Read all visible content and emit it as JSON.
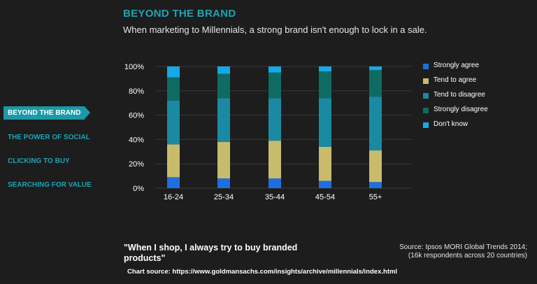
{
  "header": {
    "title": "BEYOND THE BRAND",
    "subtitle": "When marketing to Millennials, a strong brand isn't enough to lock in a sale."
  },
  "nav": {
    "items": [
      {
        "label": "BEYOND THE BRAND",
        "active": true
      },
      {
        "label": "THE POWER OF SOCIAL",
        "active": false
      },
      {
        "label": "CLICKING TO BUY",
        "active": false
      },
      {
        "label": "SEARCHING FOR VALUE",
        "active": false
      }
    ]
  },
  "chart_data": {
    "type": "bar",
    "stacked": true,
    "categories": [
      "16-24",
      "25-34",
      "35-44",
      "45-54",
      "55+"
    ],
    "y_ticks": [
      "0%",
      "20%",
      "40%",
      "60%",
      "80%",
      "100%"
    ],
    "ylim": [
      0,
      100
    ],
    "grid": true,
    "legend_position": "right",
    "series": [
      {
        "name": "Strongly agree",
        "color": "#1d6fe0",
        "values": [
          9,
          8,
          8,
          6,
          5
        ]
      },
      {
        "name": "Tend to agree",
        "color": "#c9bb6c",
        "values": [
          27,
          30,
          31,
          28,
          26
        ]
      },
      {
        "name": "Tend to disagree",
        "color": "#1a8aa3",
        "values": [
          36,
          36,
          35,
          40,
          44
        ]
      },
      {
        "name": "Strongly disagree",
        "color": "#0e6b62",
        "values": [
          19,
          20,
          21,
          22,
          22
        ]
      },
      {
        "name": "Don't know",
        "color": "#16a9e8",
        "values": [
          9,
          6,
          5,
          4,
          3
        ]
      }
    ]
  },
  "footer": {
    "quote": "\"When I shop, I always try to buy branded products\"",
    "source_line1": "Source: Ipsos MORI Global Trends 2014;",
    "source_line2": "(16k respondents across 20 countries)",
    "chart_source": "Chart source: https://www.goldmansachs.com/insights/archive/millennials/index.html"
  }
}
